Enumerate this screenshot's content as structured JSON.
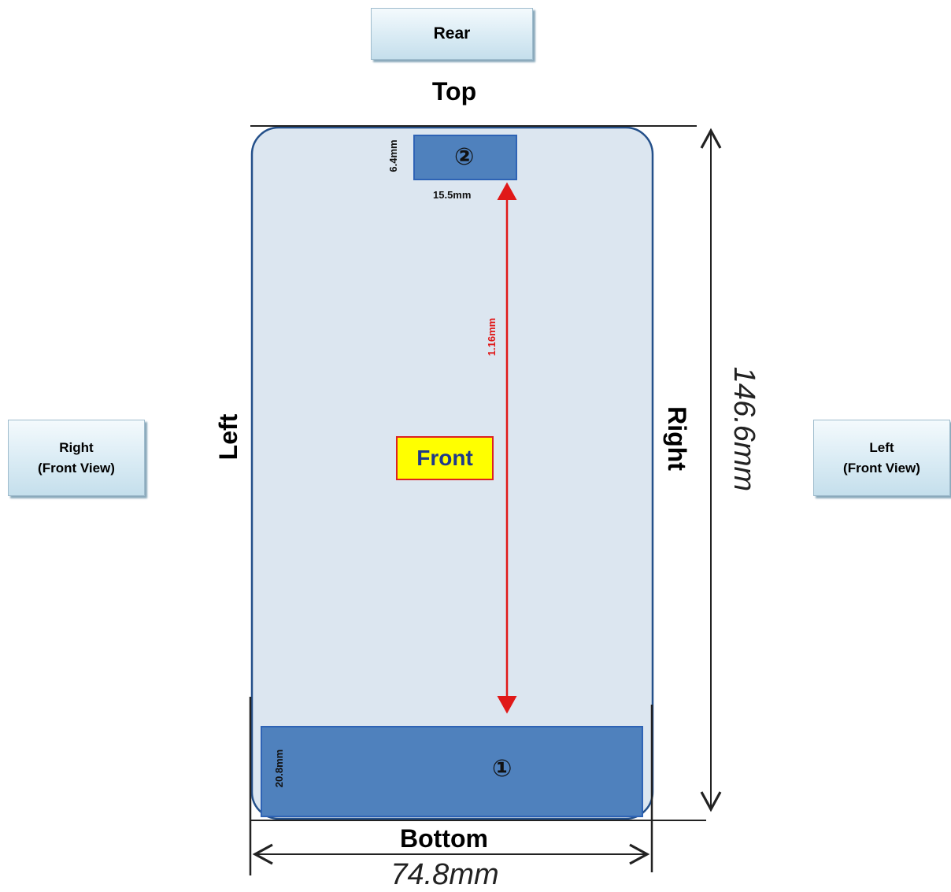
{
  "view_tag": "Rear",
  "side_tags": {
    "left_box": {
      "line1": "Right",
      "line2": "(Front View)"
    },
    "right_box": {
      "line1": "Left",
      "line2": "(Front View)"
    }
  },
  "edges": {
    "top": "Top",
    "bottom": "Bottom",
    "left": "Left",
    "right": "Right"
  },
  "dimensions": {
    "overall_height": "146.6mm",
    "overall_width": "74.8mm",
    "area2_height": "6.4mm",
    "area2_width": "15.5mm",
    "area1_height": "20.8mm",
    "separation": "1.16mm"
  },
  "front_label": "Front",
  "areas": {
    "area1": "①",
    "area2": "②"
  },
  "colors": {
    "device_fill": "#dce6f0",
    "device_stroke": "#24508a",
    "area_fill": "#4f81bd",
    "area_stroke": "#2e63b5",
    "arrow": "#e01818",
    "front_bg": "#ffff00"
  }
}
